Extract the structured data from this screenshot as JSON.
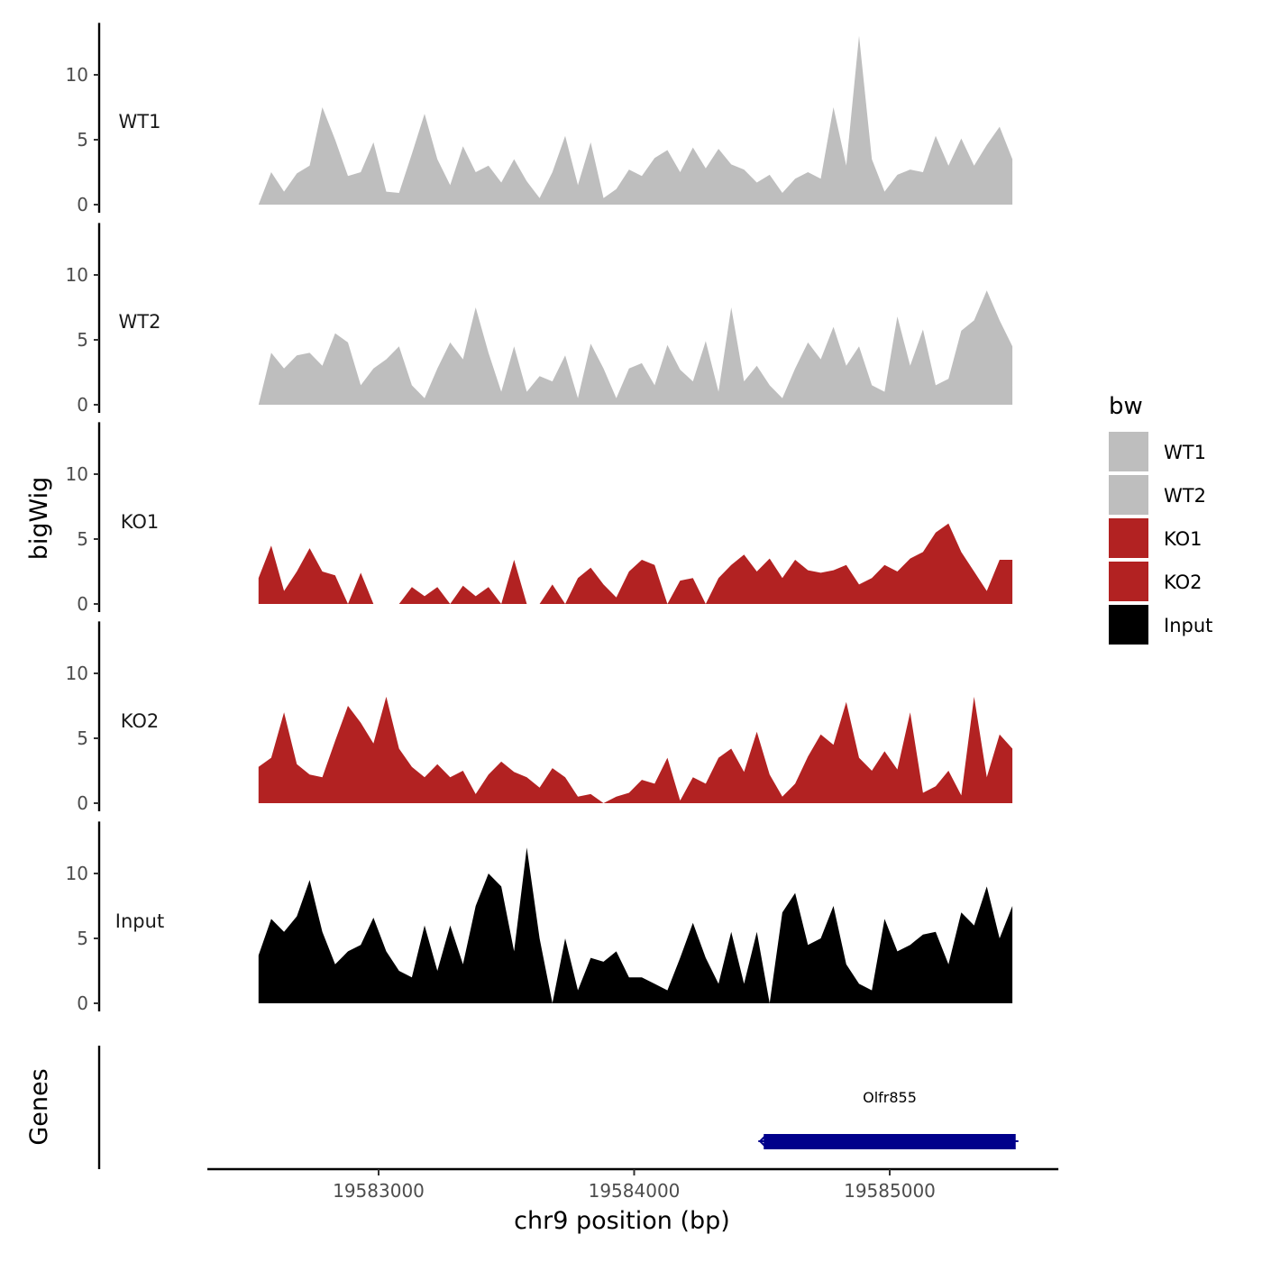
{
  "chart_data": {
    "type": "area",
    "title": "",
    "xlabel": "chr9 position (bp)",
    "ylabel": "bigWig",
    "genes_ylabel": "Genes",
    "xlim": [
      19582330,
      19585660
    ],
    "x_ticks": [
      19583000,
      19584000,
      19585000
    ],
    "x_tick_labels": [
      "19583000",
      "19584000",
      "19585000"
    ],
    "ylim": [
      0,
      14
    ],
    "y_ticks": [
      0,
      5,
      10
    ],
    "y_tick_labels": [
      "0",
      "5",
      "10"
    ],
    "x_start": 19582530,
    "x_end": 19585480,
    "x_step": 50,
    "legend": {
      "title": "bw",
      "position": "right",
      "entries": [
        {
          "label": "WT1",
          "color": "#bebebe"
        },
        {
          "label": "WT2",
          "color": "#bebebe"
        },
        {
          "label": "KO1",
          "color": "#b22222"
        },
        {
          "label": "KO2",
          "color": "#b22222"
        },
        {
          "label": "Input",
          "color": "#000000"
        }
      ]
    },
    "series": [
      {
        "name": "WT1",
        "color": "#bebebe",
        "values": [
          0.0,
          2.5,
          1.0,
          2.4,
          3.0,
          7.5,
          5.0,
          2.2,
          2.5,
          4.8,
          1.0,
          0.9,
          3.9,
          7.0,
          3.5,
          1.5,
          4.5,
          2.5,
          3.0,
          1.7,
          3.5,
          1.8,
          0.5,
          2.5,
          5.3,
          1.5,
          4.8,
          0.5,
          1.2,
          2.7,
          2.2,
          3.6,
          4.2,
          2.5,
          4.4,
          2.8,
          4.3,
          3.1,
          2.7,
          1.7,
          2.3,
          0.9,
          2.0,
          2.5,
          2.0,
          7.5,
          3.0,
          13.0,
          3.5,
          1.0,
          2.3,
          2.7,
          2.5,
          5.3,
          3.0,
          5.1,
          3.0,
          4.6,
          6.0,
          3.5
        ]
      },
      {
        "name": "WT2",
        "color": "#bebebe",
        "values": [
          0.0,
          4.0,
          2.8,
          3.8,
          4.0,
          3.0,
          5.5,
          4.8,
          1.5,
          2.8,
          3.5,
          4.5,
          1.5,
          0.5,
          2.8,
          4.8,
          3.5,
          7.5,
          4.0,
          1.0,
          4.5,
          1.0,
          2.2,
          1.8,
          3.8,
          0.5,
          4.7,
          2.8,
          0.5,
          2.8,
          3.2,
          1.5,
          4.6,
          2.7,
          1.8,
          4.9,
          1.0,
          7.5,
          1.8,
          3.0,
          1.5,
          0.5,
          2.8,
          4.8,
          3.5,
          6.0,
          3.0,
          4.5,
          1.5,
          1.0,
          6.8,
          3.0,
          5.8,
          1.5,
          2.0,
          5.7,
          6.5,
          8.8,
          6.5,
          4.5
        ]
      },
      {
        "name": "KO1",
        "color": "#b22222",
        "values": [
          2.0,
          4.5,
          1.0,
          2.5,
          4.3,
          2.5,
          2.2,
          0.0,
          2.4,
          0.0,
          0.0,
          0.0,
          1.3,
          0.6,
          1.3,
          0.0,
          1.4,
          0.6,
          1.3,
          0.0,
          3.4,
          0.0,
          0.0,
          1.5,
          0.0,
          2.0,
          2.8,
          1.5,
          0.5,
          2.5,
          3.4,
          3.0,
          0.0,
          1.8,
          2.0,
          0.0,
          2.0,
          3.0,
          3.8,
          2.5,
          3.5,
          2.0,
          3.4,
          2.6,
          2.4,
          2.6,
          3.0,
          1.5,
          2.0,
          3.0,
          2.5,
          3.5,
          4.0,
          5.5,
          6.2,
          4.0,
          2.5,
          1.0,
          3.4,
          3.4
        ]
      },
      {
        "name": "KO2",
        "color": "#b22222",
        "values": [
          2.8,
          3.5,
          7.0,
          3.0,
          2.2,
          2.0,
          4.8,
          7.5,
          6.2,
          4.6,
          8.2,
          4.2,
          2.8,
          2.0,
          3.0,
          2.0,
          2.5,
          0.7,
          2.2,
          3.2,
          2.4,
          2.0,
          1.2,
          2.7,
          2.0,
          0.5,
          0.7,
          0.0,
          0.5,
          0.8,
          1.8,
          1.5,
          3.5,
          0.2,
          2.0,
          1.5,
          3.5,
          4.2,
          2.4,
          5.5,
          2.2,
          0.5,
          1.5,
          3.6,
          5.3,
          4.5,
          7.8,
          3.5,
          2.5,
          4.0,
          2.6,
          7.0,
          0.8,
          1.3,
          2.5,
          0.6,
          8.2,
          2.0,
          5.3,
          4.2
        ]
      },
      {
        "name": "Input",
        "color": "#000000",
        "values": [
          3.7,
          6.5,
          5.5,
          6.7,
          9.5,
          5.5,
          3.0,
          4.0,
          4.5,
          6.6,
          4.0,
          2.5,
          2.0,
          6.0,
          2.5,
          6.0,
          3.0,
          7.5,
          10.0,
          9.0,
          4.0,
          12.0,
          5.0,
          0.0,
          5.0,
          1.0,
          3.5,
          3.2,
          4.0,
          2.0,
          2.0,
          1.5,
          1.0,
          3.5,
          6.2,
          3.5,
          1.5,
          5.5,
          1.5,
          5.5,
          0.0,
          7.0,
          8.5,
          4.5,
          5.0,
          7.5,
          3.0,
          1.5,
          1.0,
          6.5,
          4.0,
          4.5,
          5.3,
          5.5,
          3.0,
          7.0,
          6.0,
          9.0,
          5.0,
          7.5
        ]
      }
    ],
    "genes": [
      {
        "name": "Olfr855",
        "start": 19584500,
        "end": 19585500,
        "strand": "-",
        "color": "#00008b"
      }
    ]
  }
}
